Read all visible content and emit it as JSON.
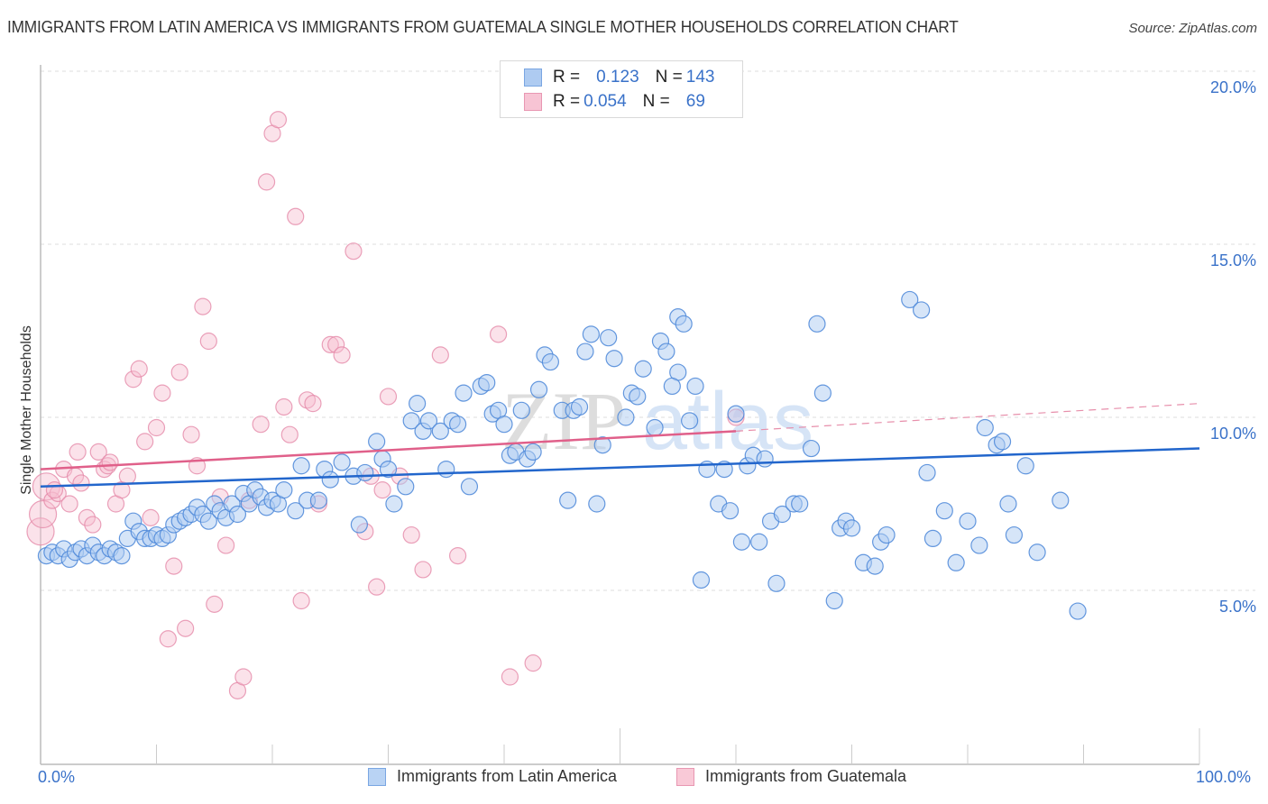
{
  "header": {
    "title": "IMMIGRANTS FROM LATIN AMERICA VS IMMIGRANTS FROM GUATEMALA SINGLE MOTHER HOUSEHOLDS CORRELATION CHART",
    "source": "Source: ZipAtlas.com"
  },
  "legend_stats": {
    "rows": [
      {
        "r_label": "R = ",
        "r_value": "0.123",
        "n_label": "N = ",
        "n_value": "143"
      },
      {
        "r_label": "R = ",
        "r_value": "0.054",
        "n_label": "N = ",
        "n_value": "69"
      }
    ]
  },
  "watermark": {
    "zip": "ZIP",
    "atlas": "atlas"
  },
  "colors": {
    "blue_fill": "#aecbf1",
    "blue_stroke": "#4a86d8",
    "blue_line": "#2266cc",
    "pink_fill": "#f7bfd0",
    "pink_stroke": "#e07a9c",
    "pink_line": "#e0608a",
    "tick_text": "#3a72c9"
  },
  "chart_data": {
    "type": "scatter",
    "title": "IMMIGRANTS FROM LATIN AMERICA VS IMMIGRANTS FROM GUATEMALA SINGLE MOTHER HOUSEHOLDS CORRELATION CHART",
    "xlabel": "",
    "ylabel": "Single Mother Households",
    "xlim": [
      0,
      100
    ],
    "ylim": [
      0,
      20.5
    ],
    "x_tick_labels": [
      "0.0%",
      "100.0%"
    ],
    "y_ticks": [
      5,
      10,
      15,
      20
    ],
    "y_tick_labels": [
      "5.0%",
      "10.0%",
      "15.0%",
      "20.0%"
    ],
    "grid": true,
    "legend_position": "bottom",
    "series": [
      {
        "name": "Immigrants from Latin America",
        "color": "#aecbf1",
        "R": 0.123,
        "N": 143,
        "trend": {
          "x": [
            0,
            100
          ],
          "y": [
            8.0,
            9.1
          ],
          "dashed_extension": false
        },
        "points": [
          [
            0.5,
            6.0
          ],
          [
            1.0,
            6.1
          ],
          [
            1.5,
            6.0
          ],
          [
            2.0,
            6.2
          ],
          [
            2.5,
            5.9
          ],
          [
            3.0,
            6.1
          ],
          [
            3.5,
            6.2
          ],
          [
            4.0,
            6.0
          ],
          [
            4.5,
            6.3
          ],
          [
            5.0,
            6.1
          ],
          [
            5.5,
            6.0
          ],
          [
            6.0,
            6.2
          ],
          [
            6.5,
            6.1
          ],
          [
            7.0,
            6.0
          ],
          [
            7.5,
            6.5
          ],
          [
            8.0,
            7.0
          ],
          [
            8.5,
            6.7
          ],
          [
            9.0,
            6.5
          ],
          [
            9.5,
            6.5
          ],
          [
            10.0,
            6.6
          ],
          [
            10.5,
            6.5
          ],
          [
            11.0,
            6.6
          ],
          [
            11.5,
            6.9
          ],
          [
            12.0,
            7.0
          ],
          [
            12.5,
            7.1
          ],
          [
            13.0,
            7.2
          ],
          [
            13.5,
            7.4
          ],
          [
            14.0,
            7.2
          ],
          [
            14.5,
            7.0
          ],
          [
            15.0,
            7.5
          ],
          [
            15.5,
            7.3
          ],
          [
            16.0,
            7.1
          ],
          [
            16.5,
            7.5
          ],
          [
            17.0,
            7.2
          ],
          [
            17.5,
            7.8
          ],
          [
            18.0,
            7.5
          ],
          [
            18.5,
            7.9
          ],
          [
            19.0,
            7.7
          ],
          [
            19.5,
            7.4
          ],
          [
            20.0,
            7.6
          ],
          [
            20.5,
            7.5
          ],
          [
            21.0,
            7.9
          ],
          [
            22.0,
            7.3
          ],
          [
            23.0,
            7.6
          ],
          [
            24.0,
            7.6
          ],
          [
            24.5,
            8.5
          ],
          [
            25.0,
            8.2
          ],
          [
            26.0,
            8.7
          ],
          [
            27.0,
            8.3
          ],
          [
            27.5,
            6.9
          ],
          [
            28.0,
            8.4
          ],
          [
            29.0,
            9.3
          ],
          [
            29.5,
            8.8
          ],
          [
            30.0,
            8.5
          ],
          [
            30.5,
            7.5
          ],
          [
            31.5,
            8.0
          ],
          [
            32.0,
            9.9
          ],
          [
            32.5,
            10.4
          ],
          [
            33.0,
            9.6
          ],
          [
            33.5,
            9.9
          ],
          [
            34.5,
            9.6
          ],
          [
            35.0,
            8.5
          ],
          [
            35.5,
            9.9
          ],
          [
            36.5,
            10.7
          ],
          [
            37.0,
            8.0
          ],
          [
            38.0,
            10.9
          ],
          [
            38.5,
            11.0
          ],
          [
            39.0,
            10.1
          ],
          [
            39.5,
            10.2
          ],
          [
            40.0,
            9.8
          ],
          [
            40.5,
            8.9
          ],
          [
            41.0,
            9.0
          ],
          [
            41.5,
            10.2
          ],
          [
            42.0,
            8.8
          ],
          [
            43.0,
            10.8
          ],
          [
            43.5,
            11.8
          ],
          [
            44.0,
            11.6
          ],
          [
            45.0,
            10.2
          ],
          [
            45.5,
            7.6
          ],
          [
            46.0,
            10.2
          ],
          [
            46.5,
            10.3
          ],
          [
            47.0,
            11.9
          ],
          [
            47.5,
            12.4
          ],
          [
            48.0,
            7.5
          ],
          [
            48.5,
            9.2
          ],
          [
            49.0,
            12.3
          ],
          [
            49.5,
            11.7
          ],
          [
            50.5,
            10.0
          ],
          [
            51.0,
            10.7
          ],
          [
            51.5,
            10.6
          ],
          [
            52.0,
            11.4
          ],
          [
            53.0,
            9.7
          ],
          [
            53.5,
            12.2
          ],
          [
            54.0,
            11.9
          ],
          [
            55.0,
            12.9
          ],
          [
            55.5,
            12.7
          ],
          [
            56.0,
            9.9
          ],
          [
            56.5,
            10.9
          ],
          [
            57.0,
            5.3
          ],
          [
            57.5,
            8.5
          ],
          [
            58.5,
            7.5
          ],
          [
            59.0,
            8.5
          ],
          [
            59.5,
            7.3
          ],
          [
            60.0,
            10.1
          ],
          [
            60.5,
            6.4
          ],
          [
            61.0,
            8.6
          ],
          [
            61.5,
            8.9
          ],
          [
            62.0,
            6.4
          ],
          [
            62.5,
            8.8
          ],
          [
            63.0,
            7.0
          ],
          [
            63.5,
            5.2
          ],
          [
            64.0,
            7.2
          ],
          [
            65.0,
            7.5
          ],
          [
            65.5,
            7.5
          ],
          [
            66.5,
            9.1
          ],
          [
            67.0,
            12.7
          ],
          [
            67.5,
            10.7
          ],
          [
            68.5,
            4.7
          ],
          [
            69.0,
            6.8
          ],
          [
            69.5,
            7.0
          ],
          [
            70.0,
            6.8
          ],
          [
            71.0,
            5.8
          ],
          [
            72.0,
            5.7
          ],
          [
            72.5,
            6.4
          ],
          [
            73.0,
            6.6
          ],
          [
            75.0,
            13.4
          ],
          [
            76.0,
            13.1
          ],
          [
            76.5,
            8.4
          ],
          [
            77.0,
            6.5
          ],
          [
            78.0,
            7.3
          ],
          [
            79.0,
            5.8
          ],
          [
            80.0,
            7.0
          ],
          [
            81.0,
            6.3
          ],
          [
            81.5,
            9.7
          ],
          [
            82.5,
            9.2
          ],
          [
            83.0,
            9.3
          ],
          [
            83.5,
            7.5
          ],
          [
            84.0,
            6.6
          ],
          [
            85.0,
            8.6
          ],
          [
            86.0,
            6.1
          ],
          [
            88.0,
            7.6
          ],
          [
            89.5,
            4.4
          ],
          [
            42.5,
            9.0
          ],
          [
            55.0,
            11.3
          ],
          [
            22.5,
            8.6
          ],
          [
            36.0,
            9.8
          ],
          [
            54.5,
            10.9
          ]
        ]
      },
      {
        "name": "Immigrants from Guatemala",
        "color": "#f7bfd0",
        "R": 0.054,
        "N": 69,
        "trend": {
          "x": [
            0,
            60
          ],
          "y": [
            8.5,
            9.6
          ],
          "dashed_extension_to": [
            100,
            10.4
          ]
        },
        "points": [
          [
            0.0,
            6.7
          ],
          [
            0.2,
            7.2
          ],
          [
            0.5,
            8.0
          ],
          [
            1.0,
            7.6
          ],
          [
            1.5,
            7.8
          ],
          [
            2.0,
            8.5
          ],
          [
            2.5,
            7.5
          ],
          [
            3.0,
            8.3
          ],
          [
            3.5,
            8.1
          ],
          [
            4.0,
            7.1
          ],
          [
            4.5,
            6.9
          ],
          [
            5.0,
            9.0
          ],
          [
            5.5,
            8.5
          ],
          [
            5.8,
            8.6
          ],
          [
            6.0,
            8.7
          ],
          [
            6.5,
            7.5
          ],
          [
            7.0,
            7.9
          ],
          [
            7.5,
            8.3
          ],
          [
            8.0,
            11.1
          ],
          [
            8.5,
            11.4
          ],
          [
            9.0,
            9.3
          ],
          [
            9.5,
            7.1
          ],
          [
            10.0,
            9.7
          ],
          [
            10.5,
            10.7
          ],
          [
            11.0,
            3.6
          ],
          [
            11.5,
            5.7
          ],
          [
            12.0,
            11.3
          ],
          [
            12.5,
            3.9
          ],
          [
            13.0,
            9.5
          ],
          [
            13.5,
            8.6
          ],
          [
            14.0,
            13.2
          ],
          [
            14.5,
            12.2
          ],
          [
            15.0,
            4.6
          ],
          [
            15.5,
            7.7
          ],
          [
            16.0,
            6.3
          ],
          [
            17.0,
            2.1
          ],
          [
            17.5,
            2.5
          ],
          [
            18.0,
            7.6
          ],
          [
            19.0,
            9.8
          ],
          [
            19.5,
            16.8
          ],
          [
            20.0,
            18.2
          ],
          [
            20.5,
            18.6
          ],
          [
            21.0,
            10.3
          ],
          [
            21.5,
            9.5
          ],
          [
            22.0,
            15.8
          ],
          [
            22.5,
            4.7
          ],
          [
            23.0,
            10.5
          ],
          [
            23.5,
            10.4
          ],
          [
            24.0,
            7.5
          ],
          [
            25.0,
            12.1
          ],
          [
            25.5,
            12.1
          ],
          [
            26.0,
            11.8
          ],
          [
            27.0,
            14.8
          ],
          [
            28.0,
            6.7
          ],
          [
            28.5,
            8.3
          ],
          [
            29.0,
            5.1
          ],
          [
            29.5,
            7.9
          ],
          [
            30.0,
            10.6
          ],
          [
            31.0,
            8.3
          ],
          [
            32.0,
            6.6
          ],
          [
            33.0,
            5.6
          ],
          [
            34.5,
            11.8
          ],
          [
            36.0,
            6.0
          ],
          [
            39.5,
            12.4
          ],
          [
            40.5,
            2.5
          ],
          [
            42.5,
            2.9
          ],
          [
            60.0,
            10.0
          ],
          [
            3.2,
            9.0
          ],
          [
            1.2,
            7.9
          ]
        ]
      }
    ]
  },
  "bottom_legend": {
    "items": [
      {
        "label": "Immigrants from Latin America"
      },
      {
        "label": "Immigrants from Guatemala"
      }
    ]
  },
  "axes": {
    "x_min_label": "0.0%",
    "x_max_label": "100.0%"
  }
}
